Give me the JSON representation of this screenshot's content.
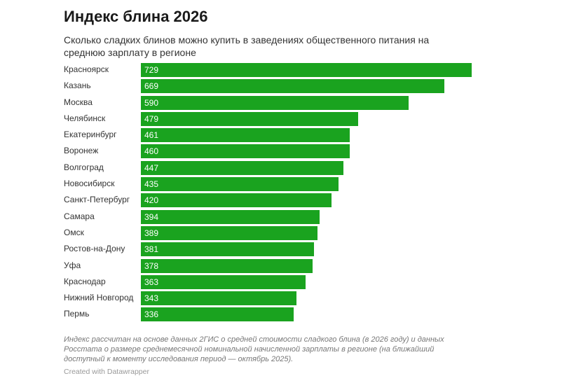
{
  "title": "Индекс блина 2026",
  "subtitle": "Сколько сладких блинов можно купить в заведениях общественного питания на среднюю зарплату в регионе",
  "notes": "Индекс рассчитан на основе данных 2ГИС о средней стоимости сладкого блина (в 2026 году) и данных Росстата о размере среднемесячной номинальной начисленной зарплаты в регионе (на ближайший доступный к моменту исследования период — октябрь 2025).",
  "credit": "Created with Datawrapper",
  "chart_data": {
    "type": "bar",
    "orientation": "horizontal",
    "title": "Индекс блина 2026",
    "color": "#1aa31f",
    "categories": [
      "Красноярск",
      "Казань",
      "Москва",
      "Челябинск",
      "Екатеринбург",
      "Воронеж",
      "Волгоград",
      "Новосибирск",
      "Санкт-Петербург",
      "Самара",
      "Омск",
      "Ростов-на-Дону",
      "Уфа",
      "Краснодар",
      "Нижний Новгород",
      "Пермь"
    ],
    "values": [
      729,
      669,
      590,
      479,
      461,
      460,
      447,
      435,
      420,
      394,
      389,
      381,
      378,
      363,
      343,
      336
    ],
    "xlim": [
      0,
      729
    ]
  }
}
